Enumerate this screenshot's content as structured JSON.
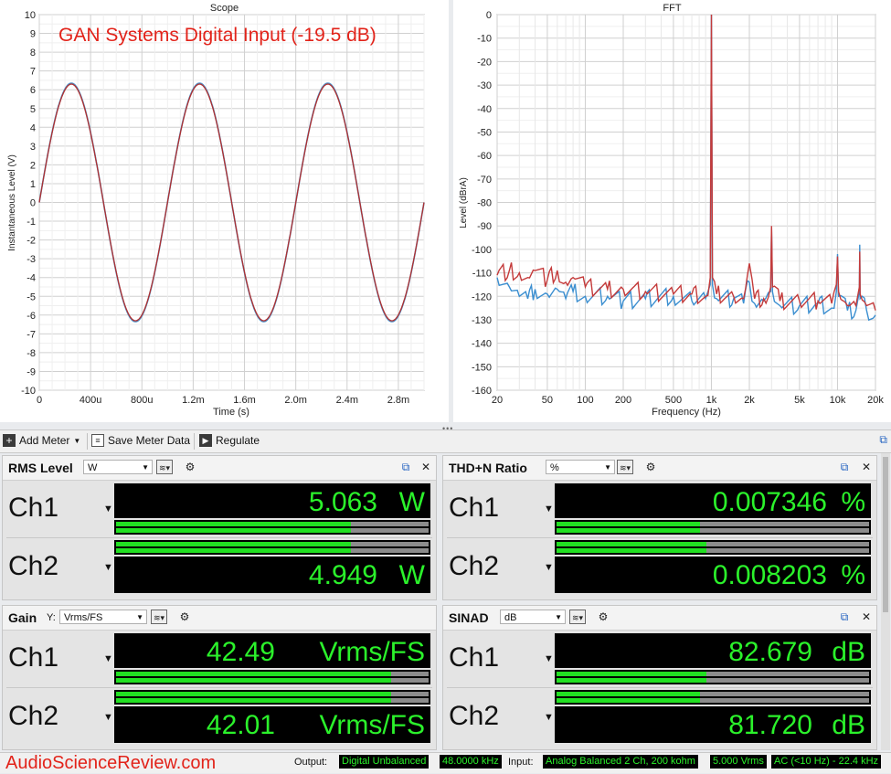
{
  "watermark": "GAN Systems Digital Input (-19.5 dB)",
  "scope": {
    "title": "Scope",
    "xlabel": "Time (s)",
    "ylabel": "Instantaneous Level (V)",
    "x_ticks": [
      "0",
      "400u",
      "800u",
      "1.2m",
      "1.6m",
      "2.0m",
      "2.4m",
      "2.8m"
    ],
    "y_ticks": [
      "10",
      "9",
      "8",
      "7",
      "6",
      "5",
      "4",
      "3",
      "2",
      "1",
      "0",
      "-1",
      "-2",
      "-3",
      "-4",
      "-5",
      "-6",
      "-7",
      "-8",
      "-9",
      "-10"
    ]
  },
  "fft": {
    "title": "FFT",
    "xlabel": "Frequency (Hz)",
    "ylabel": "Level (dBrA)",
    "x_ticks": [
      "20",
      "50",
      "100",
      "200",
      "500",
      "1k",
      "2k",
      "5k",
      "10k",
      "20k"
    ],
    "y_ticks": [
      "0",
      "-10",
      "-20",
      "-30",
      "-40",
      "-50",
      "-60",
      "-70",
      "-80",
      "-90",
      "-100",
      "-110",
      "-120",
      "-130",
      "-140",
      "-150",
      "-160"
    ]
  },
  "chart_data": [
    {
      "type": "line",
      "title": "Scope",
      "xlabel": "Time (s)",
      "ylabel": "Instantaneous Level (V)",
      "xlim": [
        0,
        0.003
      ],
      "ylim": [
        -10,
        10
      ],
      "grid": true,
      "series": [
        {
          "color": "#4a90c8",
          "waveform": "sine",
          "frequency_hz": 1000,
          "amplitude_v": 6.35,
          "phase_deg": 0
        },
        {
          "color": "#b03030",
          "waveform": "sine",
          "frequency_hz": 1000,
          "amplitude_v": 6.3,
          "phase_deg": 0
        }
      ]
    },
    {
      "type": "line",
      "title": "FFT",
      "xlabel": "Frequency (Hz)",
      "ylabel": "Level (dBrA)",
      "xscale": "log",
      "xlim": [
        20,
        20000
      ],
      "ylim": [
        -160,
        0
      ],
      "grid": true,
      "series": [
        {
          "color": "#3a8ed0",
          "x": [
            20,
            25,
            30,
            35,
            40,
            50,
            60,
            70,
            80,
            100,
            150,
            200,
            300,
            500,
            700,
            900,
            980,
            1000,
            1020,
            1100,
            1500,
            1800,
            2000,
            2200,
            2600,
            2950,
            3000,
            3050,
            3500,
            5000,
            7000,
            9000,
            9800,
            10000,
            10200,
            12000,
            14000,
            14900,
            15000,
            15100,
            17000,
            20000
          ],
          "y": [
            -112,
            -116,
            -120,
            -121,
            -117,
            -119,
            -117,
            -121,
            -118,
            -120,
            -120,
            -122,
            -121,
            -120,
            -122,
            -121,
            -115,
            0,
            -115,
            -121,
            -121,
            -123,
            -114,
            -123,
            -122,
            -118,
            -91,
            -118,
            -124,
            -124,
            -123,
            -125,
            -118,
            -102,
            -120,
            -126,
            -126,
            -118,
            -98,
            -121,
            -126,
            -128
          ]
        },
        {
          "color": "#c43a3a",
          "x": [
            20,
            25,
            30,
            35,
            40,
            50,
            60,
            70,
            80,
            100,
            150,
            200,
            300,
            500,
            700,
            900,
            980,
            1000,
            1020,
            1100,
            1500,
            1800,
            2000,
            2200,
            2600,
            2950,
            3000,
            3050,
            3500,
            5000,
            7000,
            9000,
            9800,
            10000,
            10200,
            12000,
            14000,
            14900,
            15000,
            15100,
            17000,
            20000
          ],
          "y": [
            -111,
            -109,
            -110,
            -112,
            -109,
            -113,
            -109,
            -114,
            -112,
            -116,
            -117,
            -117,
            -118,
            -119,
            -119,
            -120,
            -112,
            0,
            -112,
            -119,
            -120,
            -121,
            -106,
            -121,
            -121,
            -116,
            -90,
            -116,
            -122,
            -122,
            -122,
            -123,
            -115,
            -103,
            -118,
            -124,
            -124,
            -116,
            -101,
            -119,
            -124,
            -126
          ]
        }
      ]
    }
  ],
  "toolbar": {
    "add_meter": "Add Meter",
    "save_meter_data": "Save Meter Data",
    "regulate": "Regulate"
  },
  "meters": {
    "rms": {
      "title": "RMS Level",
      "unit_select": "W",
      "ch1": {
        "label": "Ch1",
        "value": "5.063",
        "unit": "W",
        "level": 0.75
      },
      "ch2": {
        "label": "Ch2",
        "value": "4.949",
        "unit": "W",
        "level": 0.75
      }
    },
    "thdn": {
      "title": "THD+N Ratio",
      "unit_select": "%",
      "ch1": {
        "label": "Ch1",
        "value": "0.007346",
        "unit": "%",
        "level": 0.46
      },
      "ch2": {
        "label": "Ch2",
        "value": "0.008203",
        "unit": "%",
        "level": 0.48
      }
    },
    "gain": {
      "title": "Gain",
      "y_prefix": "Y:",
      "unit_select": "Vrms/FS",
      "ch1": {
        "label": "Ch1",
        "value": "42.49",
        "unit": "Vrms/FS",
        "level": 0.88
      },
      "ch2": {
        "label": "Ch2",
        "value": "42.01",
        "unit": "Vrms/FS",
        "level": 0.88
      },
      "ch1_bar_upper": 0.88
    },
    "sinad": {
      "title": "SINAD",
      "unit_select": "dB",
      "ch1": {
        "label": "Ch1",
        "value": "82.679",
        "unit": "dB",
        "level": 0.48
      },
      "ch2": {
        "label": "Ch2",
        "value": "81.720",
        "unit": "dB",
        "level": 0.46
      }
    }
  },
  "status": {
    "brand": "AudioScienceReview.com",
    "output_label": "Output:",
    "output_type": "Digital Unbalanced",
    "output_rate": "48.0000 kHz",
    "input_label": "Input:",
    "input_type": "Analog Balanced 2 Ch, 200 kohm",
    "input_range": "5.000 Vrms",
    "input_filter": "AC (<10 Hz) - 22.4 kHz"
  }
}
